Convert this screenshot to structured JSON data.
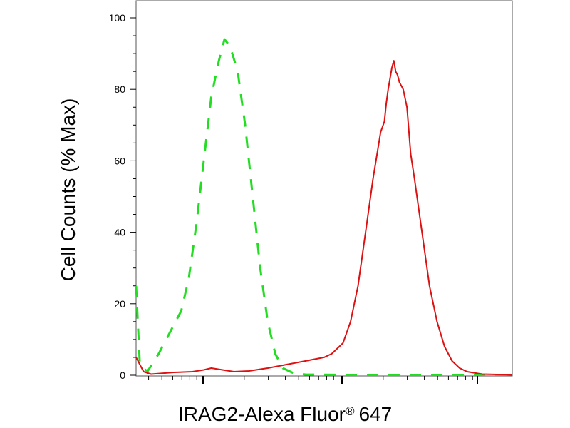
{
  "chart_data": {
    "type": "line",
    "title": "",
    "xlabel": "IRAG2-Alexa Fluor",
    "xlabel_mark": "®",
    "xlabel_suffix": "647",
    "ylabel": "Cell Counts (% Max)",
    "x_scale": "log",
    "x_tick_labels": [],
    "ylim": [
      0,
      100
    ],
    "y_ticks": [
      0,
      20,
      40,
      60,
      80,
      100
    ],
    "y_tick_labels": [
      "0",
      "20",
      "40",
      "60",
      "80",
      "100"
    ],
    "grid": false,
    "legend": "none",
    "series": [
      {
        "style": "dashed",
        "color": "#22dd22",
        "points": [
          [
            0.0,
            25
          ],
          [
            0.01,
            3
          ],
          [
            0.03,
            1
          ],
          [
            0.06,
            6
          ],
          [
            0.09,
            12
          ],
          [
            0.1,
            14
          ],
          [
            0.12,
            18
          ],
          [
            0.14,
            27
          ],
          [
            0.16,
            42
          ],
          [
            0.18,
            60
          ],
          [
            0.2,
            78
          ],
          [
            0.22,
            88
          ],
          [
            0.235,
            94
          ],
          [
            0.25,
            92
          ],
          [
            0.27,
            85
          ],
          [
            0.29,
            70
          ],
          [
            0.31,
            50
          ],
          [
            0.33,
            30
          ],
          [
            0.35,
            15
          ],
          [
            0.37,
            6
          ],
          [
            0.39,
            2
          ],
          [
            0.42,
            0.5
          ],
          [
            0.45,
            0.2
          ],
          [
            0.55,
            0.1
          ],
          [
            0.7,
            0.1
          ],
          [
            1.0,
            0.1
          ]
        ]
      },
      {
        "style": "solid",
        "color": "#dd1111",
        "points": [
          [
            0.0,
            5
          ],
          [
            0.01,
            3
          ],
          [
            0.02,
            1
          ],
          [
            0.04,
            0.3
          ],
          [
            0.1,
            0.8
          ],
          [
            0.15,
            1
          ],
          [
            0.18,
            1.5
          ],
          [
            0.2,
            2
          ],
          [
            0.23,
            1.5
          ],
          [
            0.26,
            1
          ],
          [
            0.3,
            1.2
          ],
          [
            0.35,
            2
          ],
          [
            0.4,
            3
          ],
          [
            0.45,
            4
          ],
          [
            0.5,
            5
          ],
          [
            0.52,
            6
          ],
          [
            0.55,
            9
          ],
          [
            0.57,
            15
          ],
          [
            0.59,
            25
          ],
          [
            0.61,
            40
          ],
          [
            0.63,
            55
          ],
          [
            0.65,
            68
          ],
          [
            0.66,
            71
          ],
          [
            0.665,
            76
          ],
          [
            0.67,
            80
          ],
          [
            0.675,
            83
          ],
          [
            0.68,
            86
          ],
          [
            0.685,
            88
          ],
          [
            0.69,
            85
          ],
          [
            0.695,
            84
          ],
          [
            0.7,
            82
          ],
          [
            0.71,
            80
          ],
          [
            0.72,
            75
          ],
          [
            0.73,
            62
          ],
          [
            0.74,
            55
          ],
          [
            0.76,
            40
          ],
          [
            0.78,
            25
          ],
          [
            0.8,
            15
          ],
          [
            0.82,
            8
          ],
          [
            0.84,
            4
          ],
          [
            0.86,
            2
          ],
          [
            0.88,
            1
          ],
          [
            0.92,
            0.3
          ],
          [
            1.0,
            0.1
          ]
        ]
      }
    ]
  }
}
